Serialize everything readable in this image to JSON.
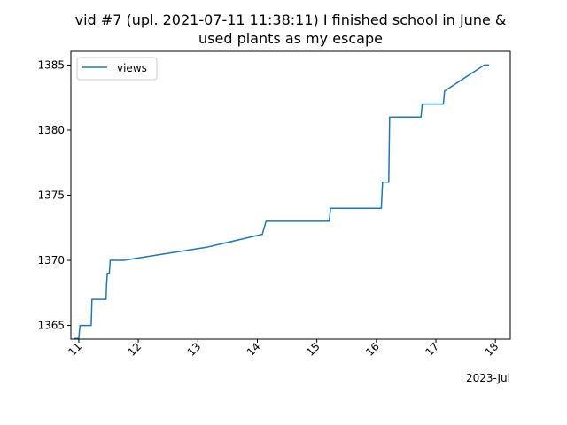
{
  "chart_data": {
    "type": "line",
    "title": "vid #7 (upl. 2021-07-11 11:38:11) I finished school in June &",
    "title_line2": "used plants as my escape",
    "xlabel": "",
    "ylabel": "",
    "x_offset_label": "2023-Jul",
    "x_ticks": [
      "11",
      "12",
      "13",
      "14",
      "15",
      "16",
      "17",
      "18"
    ],
    "y_ticks": [
      "1365",
      "1370",
      "1375",
      "1380",
      "1385"
    ],
    "xlim": [
      "2023-07-10 20:49",
      "2023-07-18 06:00"
    ],
    "ylim": [
      1363.95,
      1386.05
    ],
    "grid": false,
    "legend_position": "top-left",
    "line_color": "#1f77b4",
    "series": [
      {
        "name": "views",
        "points": [
          [
            "2023-07-10 22:00",
            1364
          ],
          [
            "2023-07-11 00:00",
            1364
          ],
          [
            "2023-07-11 00:30",
            1365
          ],
          [
            "2023-07-11 03:00",
            1365
          ],
          [
            "2023-07-11 03:30",
            1365
          ],
          [
            "2023-07-11 05:00",
            1365
          ],
          [
            "2023-07-11 05:10",
            1366
          ],
          [
            "2023-07-11 05:20",
            1367
          ],
          [
            "2023-07-11 10:00",
            1367
          ],
          [
            "2023-07-11 11:00",
            1367
          ],
          [
            "2023-07-11 11:10",
            1368
          ],
          [
            "2023-07-11 11:30",
            1369
          ],
          [
            "2023-07-11 12:20",
            1369
          ],
          [
            "2023-07-11 12:40",
            1370
          ],
          [
            "2023-07-11 18:00",
            1370
          ],
          [
            "2023-07-13 03:30",
            1371
          ],
          [
            "2023-07-14 02:00",
            1372
          ],
          [
            "2023-07-14 03:30",
            1373
          ],
          [
            "2023-07-15 05:00",
            1373
          ],
          [
            "2023-07-15 05:30",
            1374
          ],
          [
            "2023-07-16 02:00",
            1374
          ],
          [
            "2023-07-16 02:30",
            1376
          ],
          [
            "2023-07-16 05:00",
            1376
          ],
          [
            "2023-07-16 05:20",
            1381
          ],
          [
            "2023-07-16 18:00",
            1381
          ],
          [
            "2023-07-16 18:30",
            1382
          ],
          [
            "2023-07-17 03:00",
            1382
          ],
          [
            "2023-07-17 03:30",
            1383
          ],
          [
            "2023-07-17 19:30",
            1385
          ],
          [
            "2023-07-17 21:30",
            1385
          ]
        ]
      }
    ]
  }
}
